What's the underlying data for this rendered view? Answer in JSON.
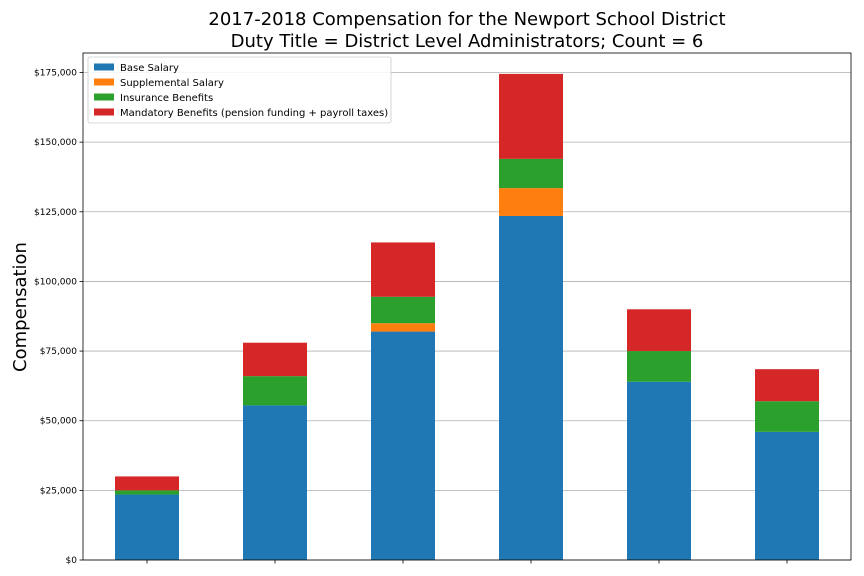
{
  "chart_data": {
    "type": "bar",
    "stacked": true,
    "title": "2017-2018 Compensation for the Newport School District",
    "subtitle": "Duty Title = District Level Administrators; Count = 6",
    "xlabel": "",
    "ylabel": "Compensation",
    "ylim": [
      0,
      182000
    ],
    "yticks": [
      "$0",
      "$25,000",
      "$50,000",
      "$75,000",
      "$100,000",
      "$125,000",
      "$150,000",
      "$175,000"
    ],
    "grid": "horizontal",
    "legend_position": "top-left",
    "categories": [
      "",
      "",
      "",
      "",
      "",
      ""
    ],
    "series": [
      {
        "name": "Base Salary",
        "color": "#1f77b4",
        "values": [
          23500,
          55500,
          82000,
          123500,
          64000,
          46000
        ]
      },
      {
        "name": "Supplemental Salary",
        "color": "#ff7f0e",
        "values": [
          0,
          0,
          3000,
          10000,
          0,
          0
        ]
      },
      {
        "name": "Insurance Benefits",
        "color": "#2ca02c",
        "values": [
          1500,
          10500,
          9500,
          10500,
          11000,
          11000
        ]
      },
      {
        "name": "Mandatory Benefits (pension funding + payroll taxes)",
        "color": "#d62728",
        "values": [
          5000,
          12000,
          19500,
          30500,
          15000,
          11500
        ]
      }
    ]
  }
}
